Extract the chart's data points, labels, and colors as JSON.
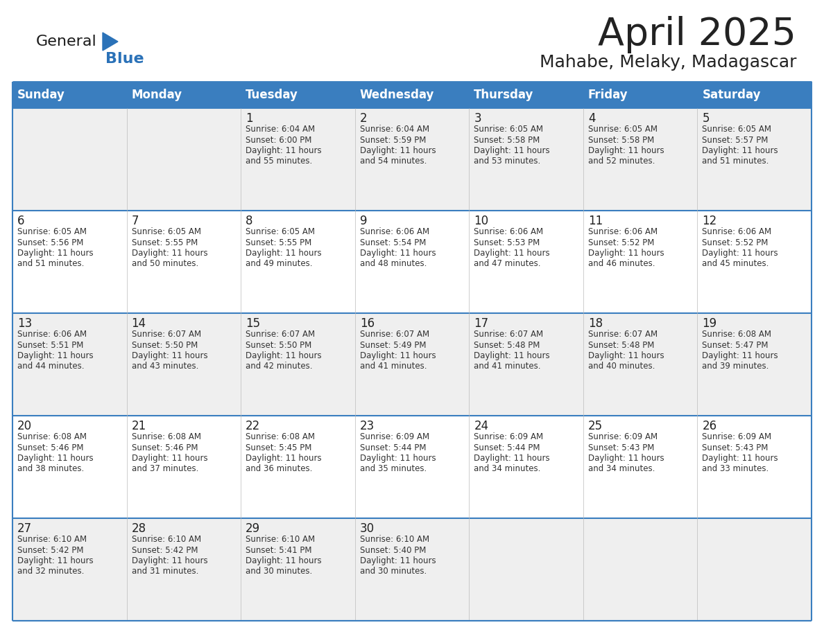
{
  "title": "April 2025",
  "subtitle": "Mahabe, Melaky, Madagascar",
  "header_bg_color": "#3a7ebf",
  "header_text_color": "#FFFFFF",
  "weekdays": [
    "Sunday",
    "Monday",
    "Tuesday",
    "Wednesday",
    "Thursday",
    "Friday",
    "Saturday"
  ],
  "row_colors": [
    "#EFEFEF",
    "#FFFFFF",
    "#EFEFEF",
    "#FFFFFF",
    "#EFEFEF"
  ],
  "border_color": "#3a7ebf",
  "cell_border_color": "#3a7ebf",
  "text_color": "#333333",
  "day_number_color": "#222222",
  "title_color": "#222222",
  "subtitle_color": "#222222",
  "logo_general_color": "#1a1a1a",
  "logo_blue_color": "#2b72b8",
  "calendar": [
    [
      {
        "day": null,
        "info": null
      },
      {
        "day": null,
        "info": null
      },
      {
        "day": 1,
        "info": "Sunrise: 6:04 AM\nSunset: 6:00 PM\nDaylight: 11 hours\nand 55 minutes."
      },
      {
        "day": 2,
        "info": "Sunrise: 6:04 AM\nSunset: 5:59 PM\nDaylight: 11 hours\nand 54 minutes."
      },
      {
        "day": 3,
        "info": "Sunrise: 6:05 AM\nSunset: 5:58 PM\nDaylight: 11 hours\nand 53 minutes."
      },
      {
        "day": 4,
        "info": "Sunrise: 6:05 AM\nSunset: 5:58 PM\nDaylight: 11 hours\nand 52 minutes."
      },
      {
        "day": 5,
        "info": "Sunrise: 6:05 AM\nSunset: 5:57 PM\nDaylight: 11 hours\nand 51 minutes."
      }
    ],
    [
      {
        "day": 6,
        "info": "Sunrise: 6:05 AM\nSunset: 5:56 PM\nDaylight: 11 hours\nand 51 minutes."
      },
      {
        "day": 7,
        "info": "Sunrise: 6:05 AM\nSunset: 5:55 PM\nDaylight: 11 hours\nand 50 minutes."
      },
      {
        "day": 8,
        "info": "Sunrise: 6:05 AM\nSunset: 5:55 PM\nDaylight: 11 hours\nand 49 minutes."
      },
      {
        "day": 9,
        "info": "Sunrise: 6:06 AM\nSunset: 5:54 PM\nDaylight: 11 hours\nand 48 minutes."
      },
      {
        "day": 10,
        "info": "Sunrise: 6:06 AM\nSunset: 5:53 PM\nDaylight: 11 hours\nand 47 minutes."
      },
      {
        "day": 11,
        "info": "Sunrise: 6:06 AM\nSunset: 5:52 PM\nDaylight: 11 hours\nand 46 minutes."
      },
      {
        "day": 12,
        "info": "Sunrise: 6:06 AM\nSunset: 5:52 PM\nDaylight: 11 hours\nand 45 minutes."
      }
    ],
    [
      {
        "day": 13,
        "info": "Sunrise: 6:06 AM\nSunset: 5:51 PM\nDaylight: 11 hours\nand 44 minutes."
      },
      {
        "day": 14,
        "info": "Sunrise: 6:07 AM\nSunset: 5:50 PM\nDaylight: 11 hours\nand 43 minutes."
      },
      {
        "day": 15,
        "info": "Sunrise: 6:07 AM\nSunset: 5:50 PM\nDaylight: 11 hours\nand 42 minutes."
      },
      {
        "day": 16,
        "info": "Sunrise: 6:07 AM\nSunset: 5:49 PM\nDaylight: 11 hours\nand 41 minutes."
      },
      {
        "day": 17,
        "info": "Sunrise: 6:07 AM\nSunset: 5:48 PM\nDaylight: 11 hours\nand 41 minutes."
      },
      {
        "day": 18,
        "info": "Sunrise: 6:07 AM\nSunset: 5:48 PM\nDaylight: 11 hours\nand 40 minutes."
      },
      {
        "day": 19,
        "info": "Sunrise: 6:08 AM\nSunset: 5:47 PM\nDaylight: 11 hours\nand 39 minutes."
      }
    ],
    [
      {
        "day": 20,
        "info": "Sunrise: 6:08 AM\nSunset: 5:46 PM\nDaylight: 11 hours\nand 38 minutes."
      },
      {
        "day": 21,
        "info": "Sunrise: 6:08 AM\nSunset: 5:46 PM\nDaylight: 11 hours\nand 37 minutes."
      },
      {
        "day": 22,
        "info": "Sunrise: 6:08 AM\nSunset: 5:45 PM\nDaylight: 11 hours\nand 36 minutes."
      },
      {
        "day": 23,
        "info": "Sunrise: 6:09 AM\nSunset: 5:44 PM\nDaylight: 11 hours\nand 35 minutes."
      },
      {
        "day": 24,
        "info": "Sunrise: 6:09 AM\nSunset: 5:44 PM\nDaylight: 11 hours\nand 34 minutes."
      },
      {
        "day": 25,
        "info": "Sunrise: 6:09 AM\nSunset: 5:43 PM\nDaylight: 11 hours\nand 34 minutes."
      },
      {
        "day": 26,
        "info": "Sunrise: 6:09 AM\nSunset: 5:43 PM\nDaylight: 11 hours\nand 33 minutes."
      }
    ],
    [
      {
        "day": 27,
        "info": "Sunrise: 6:10 AM\nSunset: 5:42 PM\nDaylight: 11 hours\nand 32 minutes."
      },
      {
        "day": 28,
        "info": "Sunrise: 6:10 AM\nSunset: 5:42 PM\nDaylight: 11 hours\nand 31 minutes."
      },
      {
        "day": 29,
        "info": "Sunrise: 6:10 AM\nSunset: 5:41 PM\nDaylight: 11 hours\nand 30 minutes."
      },
      {
        "day": 30,
        "info": "Sunrise: 6:10 AM\nSunset: 5:40 PM\nDaylight: 11 hours\nand 30 minutes."
      },
      {
        "day": null,
        "info": null
      },
      {
        "day": null,
        "info": null
      },
      {
        "day": null,
        "info": null
      }
    ]
  ]
}
